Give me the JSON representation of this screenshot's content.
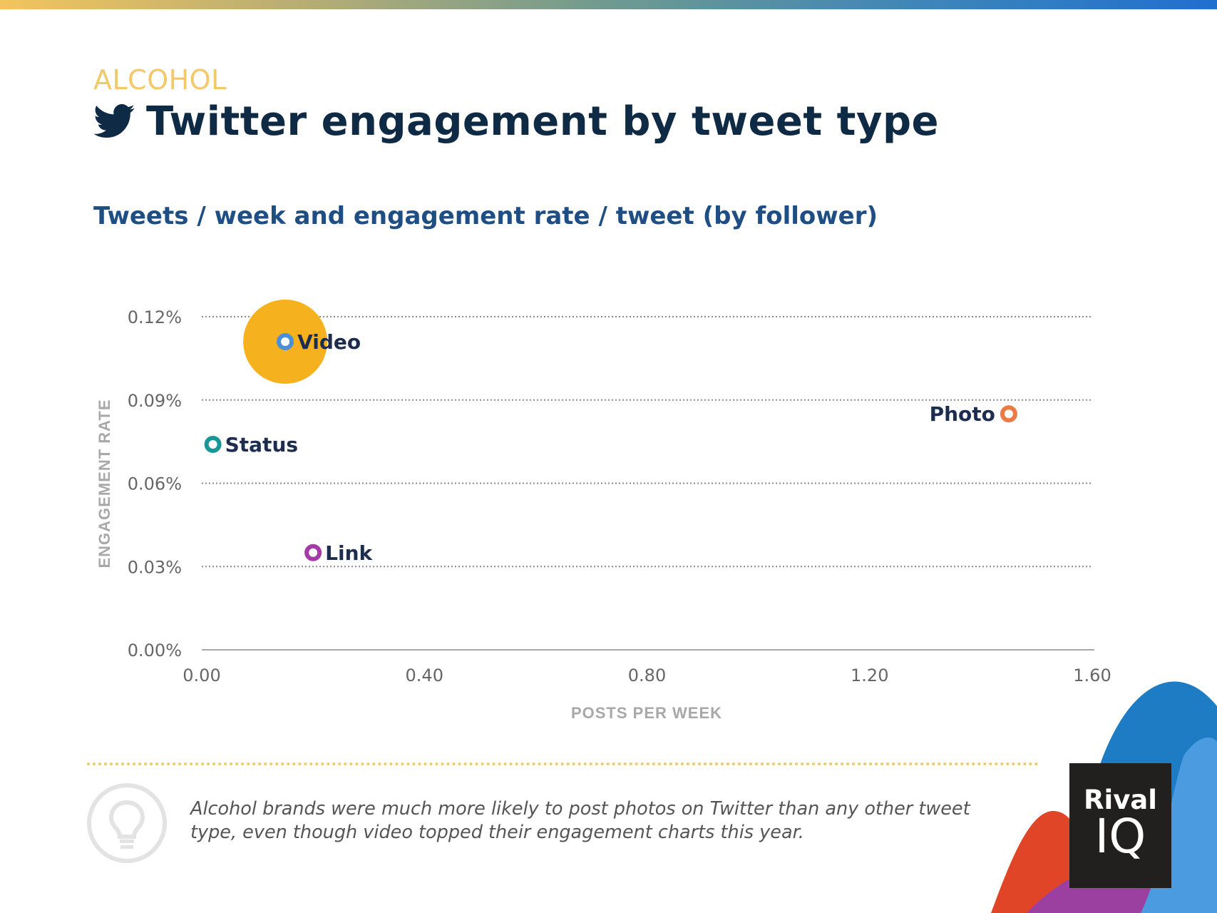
{
  "header": {
    "category": "ALCOHOL",
    "title": "Twitter engagement by tweet type",
    "subtitle": "Tweets / week and engagement rate / tweet (by follower)"
  },
  "chart_data": {
    "type": "scatter",
    "xlabel": "POSTS PER WEEK",
    "ylabel": "ENGAGEMENT RATE",
    "xlim": [
      0,
      1.6
    ],
    "ylim": [
      0,
      0.12
    ],
    "x_ticks": [
      "0.00",
      "0.40",
      "0.80",
      "1.20",
      "1.60"
    ],
    "y_ticks": [
      "0.00%",
      "0.03%",
      "0.06%",
      "0.09%",
      "0.12%"
    ],
    "grid": "horizontal dotted",
    "points": [
      {
        "label": "Video",
        "x": 0.15,
        "y": 0.111,
        "color": "#4a90d9",
        "highlight": true
      },
      {
        "label": "Photo",
        "x": 1.45,
        "y": 0.085,
        "color": "#ee7a43",
        "highlight": false
      },
      {
        "label": "Status",
        "x": 0.02,
        "y": 0.074,
        "color": "#1a9696",
        "highlight": false
      },
      {
        "label": "Link",
        "x": 0.2,
        "y": 0.035,
        "color": "#a43aa8",
        "highlight": false
      }
    ],
    "highlight_color": "#f6b21e"
  },
  "footer": {
    "insight": "Alcohol brands were much more likely to post photos on Twitter than any other tweet type, even though video topped their engagement charts this year."
  },
  "logo": {
    "top": "Rival",
    "bottom": "IQ"
  },
  "colors": {
    "category": "#f2c869",
    "title": "#0f2a44",
    "subtitle": "#1f4e85",
    "point_label": "#1d2d50"
  }
}
